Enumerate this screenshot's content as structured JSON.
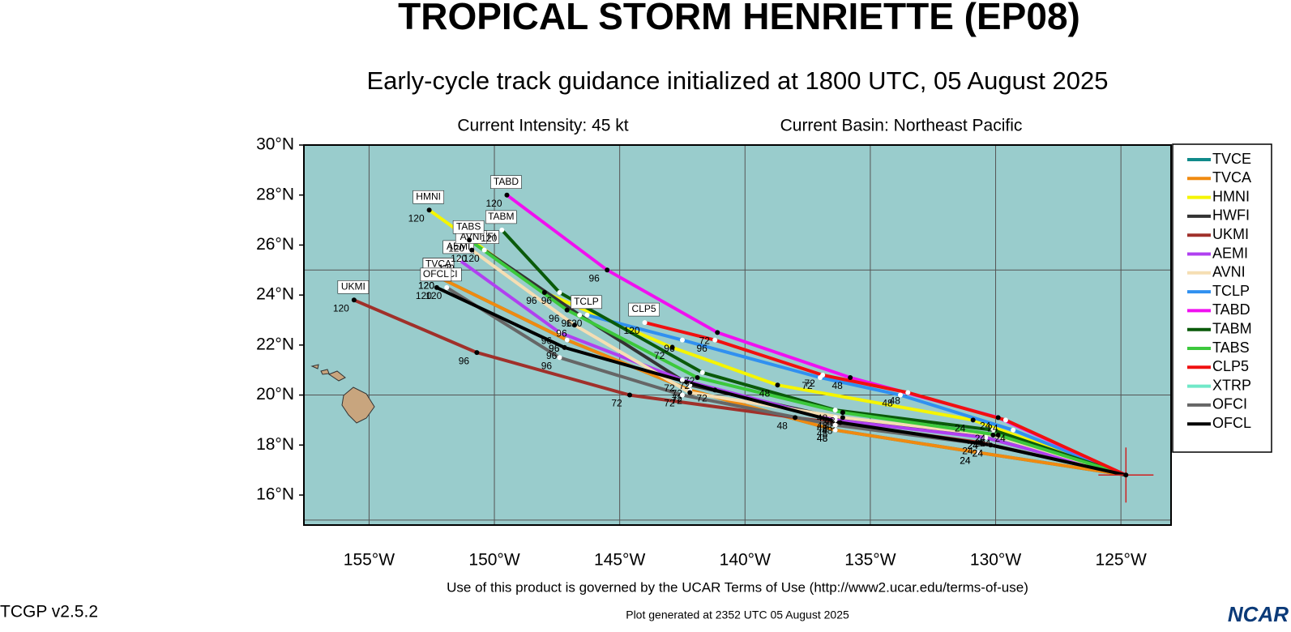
{
  "chart_data": {
    "type": "line",
    "title": "TROPICAL STORM HENRIETTE (EP08)",
    "subtitle": "Early-cycle track guidance initialized at 1800 UTC, 05 August 2025",
    "intensity_note": "Current Intensity: 45 kt",
    "basin_note": "Current Basin: Northeast Pacific",
    "terms_note": "Use of this product is governed by the UCAR Terms of Use (http://www2.ucar.edu/terms-of-use)",
    "version": "TCGP v2.5.2",
    "generated_note": "Plot generated at 2352 UTC   05 August 2025",
    "logo": "NCAR",
    "xlim": [
      -157.6,
      -123
    ],
    "ylim": [
      14.8,
      30
    ],
    "xticks": [
      {
        "value": -155,
        "label": "155°W"
      },
      {
        "value": -150,
        "label": "150°W"
      },
      {
        "value": -145,
        "label": "145°W"
      },
      {
        "value": -140,
        "label": "140°W"
      },
      {
        "value": -135,
        "label": "135°W"
      },
      {
        "value": -130,
        "label": "130°W"
      },
      {
        "value": -125,
        "label": "125°W"
      }
    ],
    "yticks": [
      {
        "value": 16,
        "label": "16°N"
      },
      {
        "value": 18,
        "label": "18°N"
      },
      {
        "value": 20,
        "label": "20°N"
      },
      {
        "value": 22,
        "label": "22°N"
      },
      {
        "value": 24,
        "label": "24°N"
      },
      {
        "value": 26,
        "label": "26°N"
      },
      {
        "value": 28,
        "label": "28°N"
      },
      {
        "value": 30,
        "label": "30°N"
      }
    ],
    "ygrid": [
      15,
      20,
      25
    ],
    "initial_position": {
      "lon": -124.8,
      "lat": 16.8
    },
    "forecast_hours": [
      24,
      48,
      72,
      96,
      120
    ],
    "series": [
      {
        "name": "TVCE",
        "color": "#108a8a",
        "x": [
          -130.7,
          -136.4,
          -142.2,
          -147.1,
          -152.2
        ],
        "values": [
          17.7,
          18.6,
          20.2,
          22.2,
          24.7
        ]
      },
      {
        "name": "TVCA",
        "color": "#f08a10",
        "x": [
          -130.7,
          -136.4,
          -142.2,
          -147.1,
          -152.2
        ],
        "values": [
          17.7,
          18.6,
          20.2,
          22.2,
          24.7
        ]
      },
      {
        "name": "HMNI",
        "color": "#f5f500",
        "x": [
          -130.9,
          -138.7,
          -142.9,
          -148.0,
          -152.6
        ],
        "values": [
          19.0,
          20.4,
          21.9,
          24.1,
          27.4
        ]
      },
      {
        "name": "HWFI",
        "color": "#333333",
        "x": [
          -130.4,
          -136.4,
          -142.2,
          -146.6,
          -150.4
        ],
        "values": [
          18.3,
          19.1,
          20.4,
          23.2,
          25.8
        ]
      },
      {
        "name": "UKMI",
        "color": "#a0302a",
        "x": [
          -130.6,
          -138.0,
          -144.6,
          -150.7,
          -155.6
        ],
        "values": [
          18.1,
          19.1,
          20.0,
          21.7,
          23.8
        ]
      },
      {
        "name": "AEMI",
        "color": "#b040f0",
        "x": [
          -130.4,
          -136.4,
          -142.5,
          -147.4,
          -151.4
        ],
        "values": [
          18.3,
          19.0,
          20.6,
          22.5,
          25.4
        ]
      },
      {
        "name": "AVNI",
        "color": "#f5deb3",
        "x": [
          -130.1,
          -136.1,
          -142.2,
          -146.8,
          -150.9
        ],
        "values": [
          18.4,
          19.1,
          20.1,
          22.8,
          25.8
        ]
      },
      {
        "name": "TCLP",
        "color": "#3090f0",
        "x": [
          -129.3,
          -133.8,
          -137.0,
          -142.5,
          -146.3
        ],
        "values": [
          18.6,
          20.0,
          20.7,
          22.2,
          23.2
        ]
      },
      {
        "name": "TABD",
        "color": "#f010f0",
        "x": [
          -129.9,
          -135.8,
          -141.1,
          -145.5,
          -149.5
        ],
        "values": [
          19.1,
          20.7,
          22.5,
          25.0,
          28.0
        ]
      },
      {
        "name": "TABM",
        "color": "#0a5a0a",
        "x": [
          -130.1,
          -136.4,
          -141.7,
          -147.4,
          -149.7
        ],
        "values": [
          18.6,
          19.4,
          20.9,
          24.1,
          26.6
        ]
      },
      {
        "name": "TABS",
        "color": "#3cc83c",
        "x": [
          -129.9,
          -136.1,
          -141.9,
          -147.1,
          -151.0
        ],
        "values": [
          18.4,
          19.3,
          20.7,
          23.4,
          26.2
        ]
      },
      {
        "name": "CLP5",
        "color": "#f01010",
        "x": [
          -129.6,
          -133.5,
          -136.9,
          -141.2,
          -144.0
        ],
        "values": [
          19.0,
          20.1,
          20.8,
          22.2,
          22.9
        ]
      },
      {
        "name": "XTRP",
        "color": "#70e8c8",
        "x": [],
        "values": []
      },
      {
        "name": "OFCI",
        "color": "#666666",
        "x": [
          -130.2,
          -136.4,
          -142.5,
          -147.4,
          -151.9
        ],
        "values": [
          18.0,
          18.8,
          20.0,
          21.5,
          24.3
        ]
      },
      {
        "name": "OFCL",
        "color": "#000000",
        "x": [
          -130.2,
          -136.2,
          -141.2,
          -147.2,
          -152.3
        ],
        "values": [
          18.0,
          18.9,
          20.2,
          21.9,
          24.3
        ]
      }
    ]
  }
}
